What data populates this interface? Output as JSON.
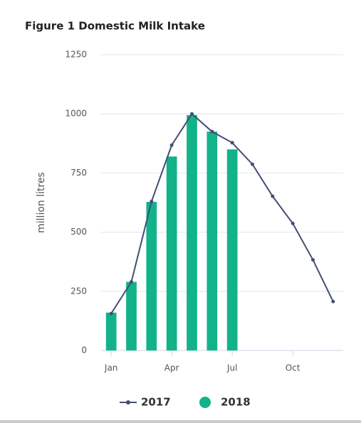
{
  "chart_data": {
    "type": "bar",
    "title": "Figure 1 Domestic Milk Intake",
    "y_label": "million litres",
    "categories": [
      "Jan",
      null,
      null,
      "Apr",
      null,
      null,
      "Jul",
      null,
      null,
      "Oct",
      null,
      null
    ],
    "series": [
      {
        "name": "2017",
        "type": "line",
        "color": "#434f75",
        "values": [
          156,
          290,
          630,
          868,
          1000,
          925,
          878,
          787,
          652,
          537,
          383,
          207
        ]
      },
      {
        "name": "2018",
        "type": "bar",
        "color": "#13b38a",
        "values": [
          160,
          290,
          628,
          820,
          995,
          925,
          850,
          null,
          null,
          null,
          null,
          null
        ]
      }
    ],
    "ylim": [
      0,
      1250
    ],
    "yticks": [
      0,
      250,
      500,
      750,
      1000,
      1250
    ],
    "grid": true,
    "legend": "bottom"
  }
}
